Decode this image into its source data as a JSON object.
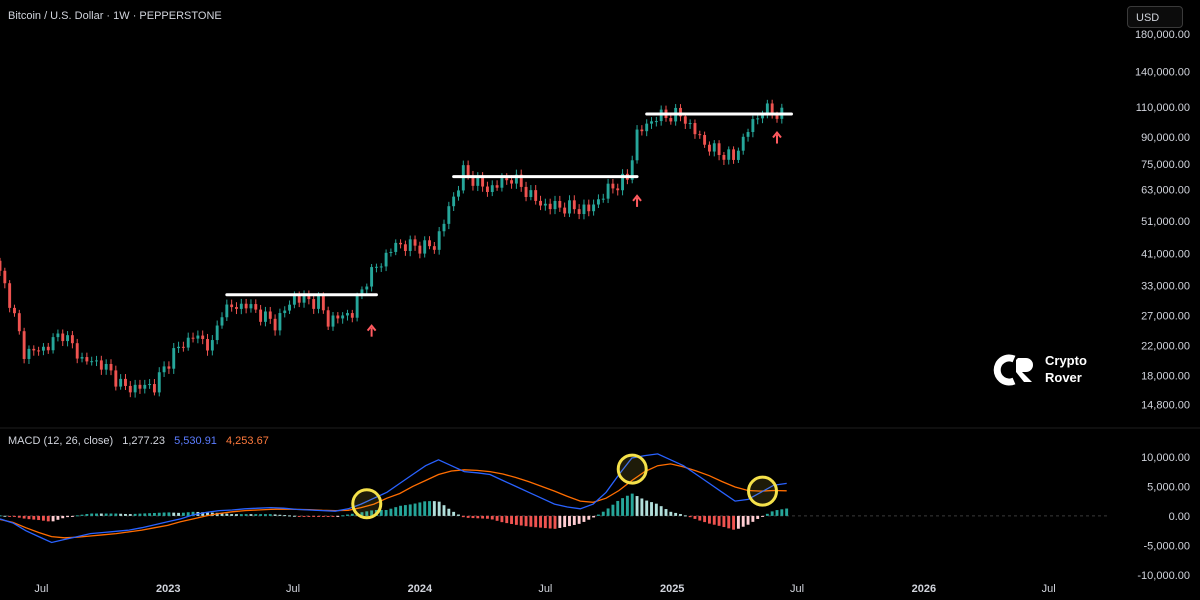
{
  "header": {
    "symbol": "Bitcoin / U.S. Dollar · 1W · PEPPERSTONE"
  },
  "currency_button": "USD",
  "macd_header": {
    "label": "MACD (12, 26, close)",
    "histogram": "1,277.23",
    "macd": "5,530.91",
    "signal": "4,253.67"
  },
  "brand": {
    "line1": "Crypto",
    "line2": "Rover"
  },
  "colors": {
    "up": "#26a69a",
    "down": "#ef5350",
    "macd_line": "#2962ff",
    "signal_line": "#ff6d00",
    "hist_pos": "#26a69a",
    "hist_neg": "#ef5350",
    "circle": "#f5e14a"
  },
  "chart_data": [
    {
      "type": "candlestick",
      "title": "Bitcoin / U.S. Dollar · 1W · PEPPERSTONE",
      "scale": "log",
      "ylim": [
        13500,
        185000
      ],
      "y_ticks": [
        "180,000.00",
        "140,000.00",
        "110,000.00",
        "90,000.00",
        "75,000.00",
        "63,000.00",
        "51,000.00",
        "41,000.00",
        "33,000.00",
        "27,000.00",
        "22,000.00",
        "18,000.00",
        "14,800.00"
      ],
      "x_ticks": [
        "Jul",
        "2023",
        "Jul",
        "2024",
        "Jul",
        "2025",
        "Jul",
        "2026",
        "Jul"
      ],
      "x_range": [
        "2022-05-02",
        "2026-09-28"
      ],
      "anchors": [
        [
          "2022-05-02",
          39000
        ],
        [
          "2022-05-23",
          30000
        ],
        [
          "2022-06-13",
          21000
        ],
        [
          "2022-07-11",
          21500
        ],
        [
          "2022-08-08",
          24000
        ],
        [
          "2022-09-05",
          20000
        ],
        [
          "2022-10-03",
          19500
        ],
        [
          "2022-11-07",
          16500
        ],
        [
          "2022-12-19",
          16800
        ],
        [
          "2023-01-16",
          21000
        ],
        [
          "2023-02-13",
          23500
        ],
        [
          "2023-03-13",
          22000
        ],
        [
          "2023-03-27",
          28000
        ],
        [
          "2023-05-01",
          29000
        ],
        [
          "2023-06-12",
          25500
        ],
        [
          "2023-07-10",
          30500
        ],
        [
          "2023-08-14",
          29500
        ],
        [
          "2023-08-28",
          26000
        ],
        [
          "2023-10-02",
          27500
        ],
        [
          "2023-10-23",
          34500
        ],
        [
          "2023-12-04",
          43500
        ],
        [
          "2024-01-08",
          43000
        ],
        [
          "2024-01-29",
          43000
        ],
        [
          "2024-03-11",
          71000
        ],
        [
          "2024-04-15",
          63000
        ],
        [
          "2024-05-20",
          68500
        ],
        [
          "2024-07-01",
          57000
        ],
        [
          "2024-08-05",
          56000
        ],
        [
          "2024-09-09",
          55000
        ],
        [
          "2024-10-07",
          63000
        ],
        [
          "2024-11-04",
          68000
        ],
        [
          "2024-11-18",
          92000
        ],
        [
          "2024-12-16",
          103000
        ],
        [
          "2025-01-20",
          104500
        ],
        [
          "2025-02-24",
          86000
        ],
        [
          "2025-03-10",
          82000
        ],
        [
          "2025-04-07",
          78000
        ],
        [
          "2025-04-28",
          94500
        ],
        [
          "2025-05-19",
          108000
        ],
        [
          "2025-06-09",
          105000
        ]
      ],
      "resistance_lines": [
        {
          "from": "2023-03-27",
          "to": "2023-10-30",
          "value": 31000
        },
        {
          "from": "2024-02-19",
          "to": "2024-11-11",
          "value": 68800
        },
        {
          "from": "2024-11-25",
          "to": "2025-06-23",
          "value": 105000
        }
      ],
      "breakout_arrows": [
        {
          "date": "2023-10-23",
          "below_value": 25000
        },
        {
          "date": "2024-11-11",
          "below_value": 60000
        },
        {
          "date": "2025-06-02",
          "below_value": 92000
        }
      ]
    },
    {
      "type": "line+histogram",
      "title": "MACD (12, 26, close)",
      "ylim": [
        -10000,
        12000
      ],
      "y_ticks": [
        "10,000.00",
        "5,000.00",
        "0.00",
        "-5,000.00",
        "-10,000.00"
      ],
      "series": [
        {
          "name": "MACD",
          "values": [
            [
              -500,
              -1200
            ],
            [
              -2500,
              -3500
            ],
            [
              -4500,
              -4000
            ],
            [
              -3500,
              -3000
            ],
            [
              -2800,
              -2600
            ],
            [
              -2400,
              -2000
            ],
            [
              -1500,
              -1000
            ],
            [
              -500,
              200
            ],
            [
              600,
              900
            ],
            [
              1000,
              1200
            ],
            [
              1300,
              1400
            ],
            [
              1300,
              1100
            ],
            [
              1000,
              900
            ],
            [
              800,
              1200
            ],
            [
              2000,
              3000
            ],
            [
              4000,
              5500
            ],
            [
              7000,
              8500
            ],
            [
              9500,
              8500
            ],
            [
              7500,
              7300
            ],
            [
              7000,
              6000
            ],
            [
              5000,
              4000
            ],
            [
              3000,
              2000
            ],
            [
              1500,
              1200
            ],
            [
              2000,
              4000
            ],
            [
              7000,
              9800
            ],
            [
              10200,
              10500
            ],
            [
              9500,
              8500
            ],
            [
              7000,
              5500
            ],
            [
              4000,
              2500
            ],
            [
              2800,
              4000
            ],
            [
              5200,
              5500
            ]
          ]
        },
        {
          "name": "Signal",
          "values": [
            [
              -600,
              -1100
            ],
            [
              -2000,
              -2800
            ],
            [
              -3500,
              -3700
            ],
            [
              -3600,
              -3400
            ],
            [
              -3200,
              -3000
            ],
            [
              -2700,
              -2400
            ],
            [
              -2000,
              -1600
            ],
            [
              -1000,
              -500
            ],
            [
              0,
              400
            ],
            [
              700,
              900
            ],
            [
              1000,
              1100
            ],
            [
              1150,
              1100
            ],
            [
              1050,
              950
            ],
            [
              900,
              950
            ],
            [
              1400,
              2000
            ],
            [
              3000,
              3800
            ],
            [
              5000,
              6000
            ],
            [
              7000,
              7600
            ],
            [
              7800,
              7700
            ],
            [
              7500,
              7100
            ],
            [
              6500,
              5800
            ],
            [
              5000,
              4200
            ],
            [
              3300,
              2500
            ],
            [
              2300,
              3000
            ],
            [
              4300,
              6000
            ],
            [
              7500,
              8500
            ],
            [
              8800,
              8300
            ],
            [
              7600,
              6800
            ],
            [
              5800,
              4900
            ],
            [
              4300,
              4200
            ],
            [
              4300,
              4250
            ]
          ]
        },
        {
          "name": "Histogram",
          "values": [
            1277.23
          ]
        }
      ],
      "highlight_circles": [
        "2023-10-16",
        "2024-11-04",
        "2025-05-12"
      ]
    }
  ]
}
